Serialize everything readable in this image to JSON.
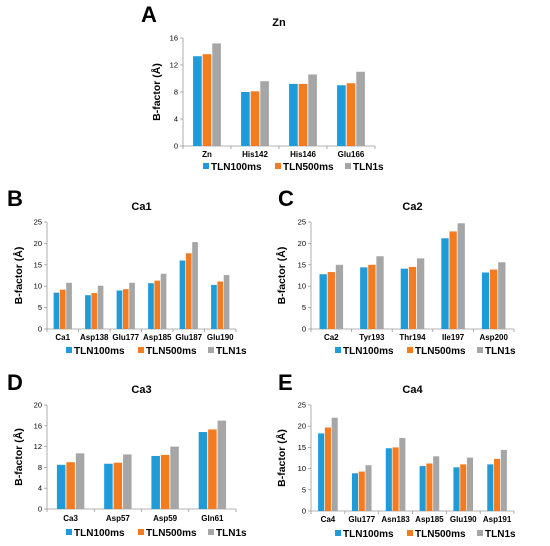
{
  "colors": {
    "TLN100ms": "#1f9bd7",
    "TLN500ms": "#f47b20",
    "TLN1s": "#a6a6a6",
    "axis": "#9a9a9a"
  },
  "chart_data": [
    {
      "id": "A",
      "letter": "A",
      "type": "bar",
      "title": "Zn",
      "ylabel": "B-factor (Å)",
      "ylim": [
        0,
        16
      ],
      "yticks": [
        0,
        4,
        8,
        12,
        16
      ],
      "categories": [
        "Zn",
        "His142",
        "His146",
        "Glu166"
      ],
      "series": [
        {
          "name": "TLN100ms",
          "values": [
            13.3,
            8.0,
            9.2,
            9.0
          ]
        },
        {
          "name": "TLN500ms",
          "values": [
            13.6,
            8.1,
            9.2,
            9.3
          ]
        },
        {
          "name": "TLN1s",
          "values": [
            15.2,
            9.6,
            10.6,
            11.0
          ]
        }
      ],
      "legend": "bottom",
      "grid": false
    },
    {
      "id": "B",
      "letter": "B",
      "type": "bar",
      "title": "Ca1",
      "ylabel": "B-factor (Å)",
      "ylim": [
        0,
        25
      ],
      "yticks": [
        0,
        5,
        10,
        15,
        20,
        25
      ],
      "categories": [
        "Ca1",
        "Asp138",
        "Glu177",
        "Asp185",
        "Glu187",
        "Glu190"
      ],
      "series": [
        {
          "name": "TLN100ms",
          "values": [
            8.5,
            7.9,
            9.0,
            10.7,
            16.0,
            10.3
          ]
        },
        {
          "name": "TLN500ms",
          "values": [
            9.2,
            8.4,
            9.3,
            11.3,
            17.7,
            11.1
          ]
        },
        {
          "name": "TLN1s",
          "values": [
            10.8,
            10.1,
            10.8,
            12.9,
            20.3,
            12.6
          ]
        }
      ],
      "legend": "bottom",
      "grid": false
    },
    {
      "id": "C",
      "letter": "C",
      "type": "bar",
      "title": "Ca2",
      "ylabel": "B-factor (Å)",
      "ylim": [
        0,
        25
      ],
      "yticks": [
        0,
        5,
        10,
        15,
        20,
        25
      ],
      "categories": [
        "Ca2",
        "Tyr193",
        "Thr194",
        "Ile197",
        "Asp200"
      ],
      "series": [
        {
          "name": "TLN100ms",
          "values": [
            12.8,
            14.4,
            14.1,
            21.2,
            13.2
          ]
        },
        {
          "name": "TLN500ms",
          "values": [
            13.3,
            15.0,
            14.5,
            22.8,
            13.9
          ]
        },
        {
          "name": "TLN1s",
          "values": [
            15.0,
            17.0,
            16.5,
            24.7,
            15.6
          ]
        }
      ],
      "legend": "bottom",
      "grid": false
    },
    {
      "id": "D",
      "letter": "D",
      "type": "bar",
      "title": "Ca3",
      "ylabel": "B-factor (Å)",
      "ylim": [
        0,
        20
      ],
      "yticks": [
        0,
        4,
        8,
        12,
        16,
        20
      ],
      "categories": [
        "Ca3",
        "Asp57",
        "Asp59",
        "Gln61"
      ],
      "series": [
        {
          "name": "TLN100ms",
          "values": [
            8.5,
            8.7,
            10.2,
            14.8
          ]
        },
        {
          "name": "TLN500ms",
          "values": [
            9.0,
            8.9,
            10.4,
            15.3
          ]
        },
        {
          "name": "TLN1s",
          "values": [
            10.7,
            10.5,
            12.0,
            17.0
          ]
        }
      ],
      "legend": "bottom",
      "grid": false
    },
    {
      "id": "E",
      "letter": "E",
      "type": "bar",
      "title": "Ca4",
      "ylabel": "B-factor (Å)",
      "ylim": [
        0,
        25
      ],
      "yticks": [
        0,
        5,
        10,
        15,
        20,
        25
      ],
      "categories": [
        "Ca4",
        "Glu177",
        "Asn183",
        "Asp185",
        "Glu190",
        "Asp191"
      ],
      "series": [
        {
          "name": "TLN100ms",
          "values": [
            18.3,
            8.9,
            14.8,
            10.6,
            10.3,
            11.0
          ]
        },
        {
          "name": "TLN500ms",
          "values": [
            19.7,
            9.3,
            15.0,
            11.2,
            11.0,
            12.3
          ]
        },
        {
          "name": "TLN1s",
          "values": [
            22.0,
            10.8,
            17.2,
            12.9,
            12.6,
            14.4
          ]
        }
      ],
      "legend": "bottom",
      "grid": false
    }
  ]
}
